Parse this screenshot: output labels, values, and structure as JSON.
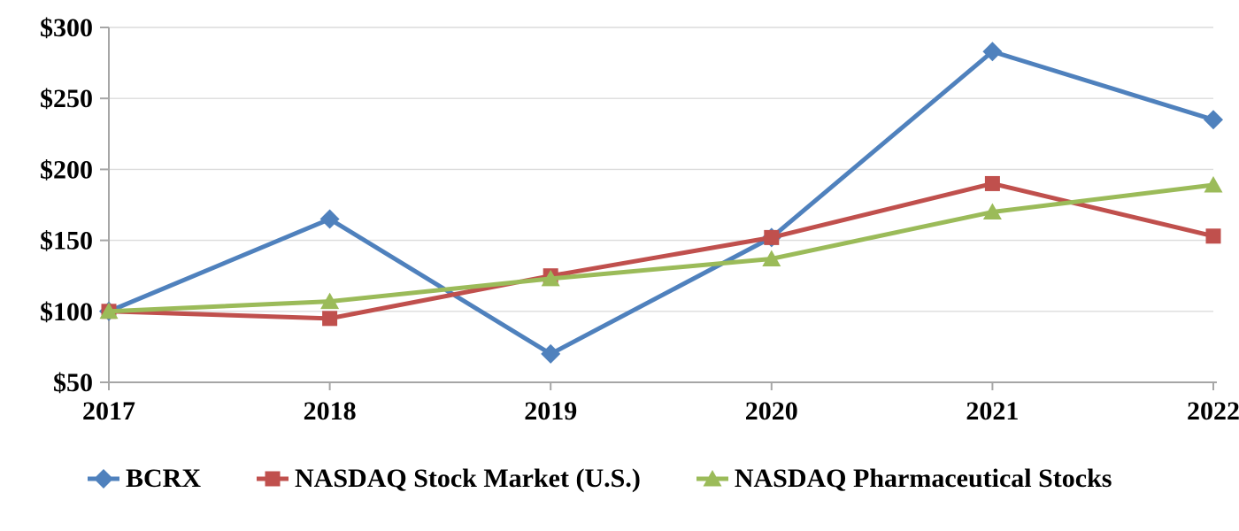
{
  "chart_data": {
    "type": "line",
    "title": "",
    "xlabel": "",
    "ylabel": "",
    "categories": [
      "2017",
      "2018",
      "2019",
      "2020",
      "2021",
      "2022"
    ],
    "series": [
      {
        "name": "BCRX",
        "color": "#4F81BD",
        "marker": "diamond",
        "values": [
          100,
          165,
          70,
          152,
          283,
          235
        ]
      },
      {
        "name": "NASDAQ Stock Market (U.S.)",
        "color": "#C0504D",
        "marker": "square",
        "values": [
          100,
          95,
          125,
          152,
          190,
          153
        ]
      },
      {
        "name": "NASDAQ Pharmaceutical Stocks",
        "color": "#9BBB59",
        "marker": "triangle",
        "values": [
          100,
          107,
          123,
          137,
          170,
          189
        ]
      }
    ],
    "ylim": [
      50,
      300
    ],
    "yticks": [
      50,
      100,
      150,
      200,
      250,
      300
    ],
    "ytick_labels": [
      "$50",
      "$100",
      "$150",
      "$200",
      "$250",
      "$300"
    ],
    "grid": true,
    "legend_position": "bottom"
  },
  "colors": {
    "background": "#FFFFFF",
    "gridline": "#DCDCDC",
    "axis": "#A6A6A6",
    "text": "#000000"
  }
}
